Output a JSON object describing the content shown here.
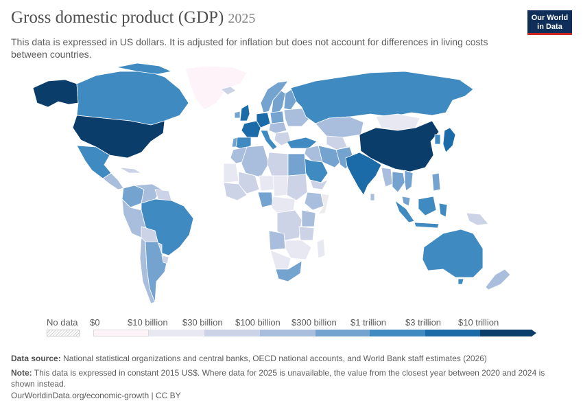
{
  "header": {
    "title": "Gross domestic product (GDP)",
    "year": "2025",
    "subtitle": "This data is expressed in US dollars. It is adjusted for inflation but does not account for differences in living costs between countries."
  },
  "logo": {
    "line1": "Our World",
    "line2": "in Data"
  },
  "legend": {
    "no_data_label": "No data",
    "bins": [
      {
        "label": "$0",
        "color": "#fdf3f8"
      },
      {
        "label": "$10 billion",
        "color": "#e8e8f3"
      },
      {
        "label": "$30 billion",
        "color": "#ccd3e6"
      },
      {
        "label": "$100 billion",
        "color": "#a9bedc"
      },
      {
        "label": "$300 billion",
        "color": "#74a3cf"
      },
      {
        "label": "$1 trillion",
        "color": "#3f8ac1"
      },
      {
        "label": "$3 trillion",
        "color": "#1b6ba8"
      },
      {
        "label": "$10 trillion",
        "color": "#0b3d6b"
      }
    ]
  },
  "footer": {
    "source_label": "Data source:",
    "source_text": "National statistical organizations and central banks, OECD national accounts, and World Bank staff estimates (2026)",
    "note_label": "Note:",
    "note_text": "This data is expressed in constant 2015 US$. Where data for 2025 is unavailable, the value from the closest year between 2020 and 2024 is shown instead.",
    "link": "OurWorldinData.org/economic-growth | CC BY"
  },
  "colors": {
    "ocean": "#ffffff",
    "border": "#ffffff",
    "no_data": "#ececec"
  }
}
